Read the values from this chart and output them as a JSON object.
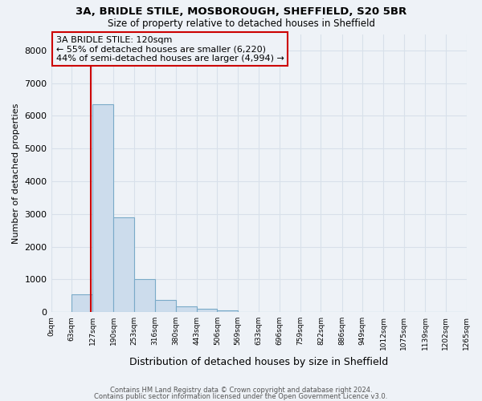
{
  "title1": "3A, BRIDLE STILE, MOSBOROUGH, SHEFFIELD, S20 5BR",
  "title2": "Size of property relative to detached houses in Sheffield",
  "xlabel": "Distribution of detached houses by size in Sheffield",
  "ylabel": "Number of detached properties",
  "bar_color": "#ccdcec",
  "bar_edge_color": "#7aaac8",
  "bins": [
    0,
    63,
    127,
    190,
    253,
    316,
    380,
    443,
    506,
    569,
    633,
    696,
    759,
    822,
    886,
    949,
    1012,
    1075,
    1139,
    1202,
    1265
  ],
  "counts": [
    0,
    550,
    6350,
    2900,
    1000,
    375,
    175,
    100,
    65,
    10,
    5,
    3,
    2,
    1,
    1,
    0,
    0,
    0,
    0,
    0
  ],
  "property_size": 120,
  "red_line_color": "#cc0000",
  "annotation_line1": "3A BRIDLE STILE: 120sqm",
  "annotation_line2": "← 55% of detached houses are smaller (6,220)",
  "annotation_line3": "44% of semi-detached houses are larger (4,994) →",
  "annotation_box_color": "#cc0000",
  "ylim": [
    0,
    8500
  ],
  "yticks": [
    0,
    1000,
    2000,
    3000,
    4000,
    5000,
    6000,
    7000,
    8000
  ],
  "footer1": "Contains HM Land Registry data © Crown copyright and database right 2024.",
  "footer2": "Contains public sector information licensed under the Open Government Licence v3.0.",
  "bg_color": "#eef2f7",
  "grid_color": "#d8e0ea"
}
